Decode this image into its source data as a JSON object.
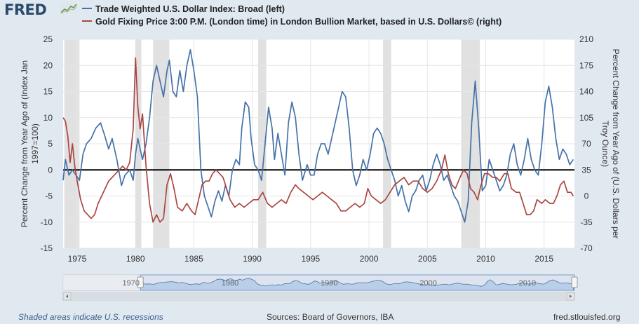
{
  "header": {
    "logo_text": "FRED",
    "logo_icon": "chart-line-icon",
    "legend": [
      {
        "label": "Trade Weighted U.S. Dollar Index: Broad (left)",
        "color": "#4572a7"
      },
      {
        "label": "Gold Fixing Price 3:00 P.M. (London time) in London Bullion Market, based in U.S. Dollars© (right)",
        "color": "#aa4643"
      }
    ]
  },
  "colors": {
    "plot_bg": "#ffffff",
    "page_bg": "#e1e9f0",
    "recession": "#e1e1e1",
    "zero_line": "#000000",
    "navigator_fill": "#c8dcf0",
    "navigator_line": "#4572a7"
  },
  "chart_data": {
    "type": "line",
    "x_range": [
      1973.8,
      2017.6
    ],
    "x_ticks": [
      1975,
      1980,
      1985,
      1990,
      1995,
      2000,
      2005,
      2010,
      2015
    ],
    "left_axis": {
      "label": "Percent Change from Year Ago of (Index Jan 1997=100)",
      "range": [
        -15,
        25
      ],
      "ticks": [
        -15,
        -10,
        -5,
        0,
        5,
        10,
        15,
        20,
        25
      ]
    },
    "right_axis": {
      "label": "Percent Change from Year Ago of (U.S. Dollars per Troy Ounce)",
      "range": [
        -70,
        210
      ],
      "ticks": [
        -70,
        -35,
        0,
        35,
        70,
        105,
        140,
        175,
        210
      ]
    },
    "recessions": [
      [
        1973.9,
        1975.2
      ],
      [
        1980.0,
        1980.5
      ],
      [
        1981.5,
        1982.9
      ],
      [
        1990.5,
        1991.2
      ],
      [
        2001.2,
        2001.9
      ],
      [
        2007.9,
        2009.5
      ]
    ],
    "series": [
      {
        "name": "Trade Weighted U.S. Dollar Index: Broad (left)",
        "axis": "left",
        "color": "#4572a7",
        "points": [
          [
            1973.8,
            -2
          ],
          [
            1974.0,
            2
          ],
          [
            1974.3,
            -1
          ],
          [
            1974.6,
            0
          ],
          [
            1974.9,
            -1
          ],
          [
            1975.2,
            -2
          ],
          [
            1975.5,
            3
          ],
          [
            1975.8,
            5
          ],
          [
            1976.2,
            6
          ],
          [
            1976.6,
            8
          ],
          [
            1977.0,
            9
          ],
          [
            1977.3,
            7
          ],
          [
            1977.7,
            4
          ],
          [
            1978.0,
            6
          ],
          [
            1978.4,
            2
          ],
          [
            1978.8,
            -3
          ],
          [
            1979.1,
            -1
          ],
          [
            1979.5,
            0
          ],
          [
            1979.8,
            -2
          ],
          [
            1980.0,
            3
          ],
          [
            1980.2,
            6
          ],
          [
            1980.4,
            4
          ],
          [
            1980.6,
            2
          ],
          [
            1980.9,
            5
          ],
          [
            1981.2,
            10
          ],
          [
            1981.5,
            17
          ],
          [
            1981.8,
            20
          ],
          [
            1982.1,
            17
          ],
          [
            1982.4,
            14
          ],
          [
            1982.7,
            19
          ],
          [
            1982.9,
            21
          ],
          [
            1983.2,
            15
          ],
          [
            1983.5,
            14
          ],
          [
            1983.8,
            19
          ],
          [
            1984.1,
            15
          ],
          [
            1984.4,
            20
          ],
          [
            1984.7,
            23
          ],
          [
            1985.0,
            19
          ],
          [
            1985.3,
            14
          ],
          [
            1985.6,
            0
          ],
          [
            1985.9,
            -5
          ],
          [
            1986.2,
            -7
          ],
          [
            1986.5,
            -9
          ],
          [
            1986.8,
            -6
          ],
          [
            1987.1,
            -4
          ],
          [
            1987.4,
            -6
          ],
          [
            1987.7,
            -3
          ],
          [
            1988.0,
            -5
          ],
          [
            1988.3,
            0
          ],
          [
            1988.6,
            2
          ],
          [
            1988.9,
            1
          ],
          [
            1989.1,
            8
          ],
          [
            1989.4,
            13
          ],
          [
            1989.7,
            12
          ],
          [
            1989.9,
            6
          ],
          [
            1990.2,
            1
          ],
          [
            1990.5,
            0
          ],
          [
            1990.8,
            -2
          ],
          [
            1991.1,
            5
          ],
          [
            1991.4,
            12
          ],
          [
            1991.7,
            8
          ],
          [
            1991.9,
            2
          ],
          [
            1992.2,
            7
          ],
          [
            1992.5,
            3
          ],
          [
            1992.8,
            -1
          ],
          [
            1993.1,
            9
          ],
          [
            1993.4,
            13
          ],
          [
            1993.7,
            10
          ],
          [
            1994.0,
            3
          ],
          [
            1994.3,
            -2
          ],
          [
            1994.7,
            1
          ],
          [
            1995.0,
            -1
          ],
          [
            1995.3,
            -1
          ],
          [
            1995.6,
            3
          ],
          [
            1995.9,
            5
          ],
          [
            1996.2,
            5
          ],
          [
            1996.5,
            3
          ],
          [
            1996.8,
            6
          ],
          [
            1997.1,
            9
          ],
          [
            1997.4,
            12
          ],
          [
            1997.7,
            15
          ],
          [
            1998.0,
            14
          ],
          [
            1998.3,
            8
          ],
          [
            1998.6,
            0
          ],
          [
            1998.9,
            -3
          ],
          [
            1999.2,
            -1
          ],
          [
            1999.5,
            2
          ],
          [
            1999.8,
            0
          ],
          [
            2000.1,
            3
          ],
          [
            2000.4,
            7
          ],
          [
            2000.7,
            8
          ],
          [
            2001.0,
            7
          ],
          [
            2001.3,
            5
          ],
          [
            2001.6,
            2
          ],
          [
            2001.9,
            0
          ],
          [
            2002.2,
            -2
          ],
          [
            2002.5,
            -5
          ],
          [
            2002.8,
            -3
          ],
          [
            2003.1,
            -6
          ],
          [
            2003.4,
            -8
          ],
          [
            2003.7,
            -5
          ],
          [
            2004.0,
            -4
          ],
          [
            2004.3,
            -2
          ],
          [
            2004.6,
            -1
          ],
          [
            2004.9,
            -4
          ],
          [
            2005.2,
            -2
          ],
          [
            2005.5,
            1
          ],
          [
            2005.8,
            3
          ],
          [
            2006.1,
            1
          ],
          [
            2006.4,
            -2
          ],
          [
            2006.7,
            -1
          ],
          [
            2007.0,
            -3
          ],
          [
            2007.3,
            -5
          ],
          [
            2007.6,
            -6
          ],
          [
            2007.9,
            -8
          ],
          [
            2008.2,
            -10
          ],
          [
            2008.5,
            -6
          ],
          [
            2008.8,
            9
          ],
          [
            2009.1,
            17
          ],
          [
            2009.4,
            8
          ],
          [
            2009.7,
            -4
          ],
          [
            2010.0,
            -3
          ],
          [
            2010.3,
            2
          ],
          [
            2010.6,
            0
          ],
          [
            2010.9,
            -2
          ],
          [
            2011.2,
            -4
          ],
          [
            2011.5,
            -3
          ],
          [
            2011.8,
            -1
          ],
          [
            2012.1,
            3
          ],
          [
            2012.4,
            5
          ],
          [
            2012.7,
            1
          ],
          [
            2013.0,
            -1
          ],
          [
            2013.3,
            2
          ],
          [
            2013.6,
            6
          ],
          [
            2013.9,
            2
          ],
          [
            2014.2,
            0
          ],
          [
            2014.5,
            -1
          ],
          [
            2014.8,
            5
          ],
          [
            2015.1,
            13
          ],
          [
            2015.4,
            16
          ],
          [
            2015.7,
            12
          ],
          [
            2016.0,
            6
          ],
          [
            2016.3,
            2
          ],
          [
            2016.6,
            4
          ],
          [
            2016.9,
            3
          ],
          [
            2017.2,
            1
          ],
          [
            2017.5,
            2
          ]
        ]
      },
      {
        "name": "Gold Fixing Price 3:00 P.M. (London time) in London Bullion Market, based in U.S. Dollars© (right)",
        "axis": "right",
        "color": "#aa4643",
        "points": [
          [
            1973.8,
            105
          ],
          [
            1974.0,
            100
          ],
          [
            1974.2,
            80
          ],
          [
            1974.4,
            45
          ],
          [
            1974.6,
            70
          ],
          [
            1974.8,
            40
          ],
          [
            1975.0,
            20
          ],
          [
            1975.3,
            -5
          ],
          [
            1975.6,
            -20
          ],
          [
            1975.9,
            -25
          ],
          [
            1976.2,
            -30
          ],
          [
            1976.5,
            -25
          ],
          [
            1976.8,
            -10
          ],
          [
            1977.1,
            0
          ],
          [
            1977.4,
            10
          ],
          [
            1977.7,
            20
          ],
          [
            1978.0,
            25
          ],
          [
            1978.3,
            30
          ],
          [
            1978.6,
            35
          ],
          [
            1978.9,
            40
          ],
          [
            1979.2,
            35
          ],
          [
            1979.5,
            45
          ],
          [
            1979.8,
            90
          ],
          [
            1980.0,
            185
          ],
          [
            1980.2,
            120
          ],
          [
            1980.4,
            90
          ],
          [
            1980.6,
            110
          ],
          [
            1980.9,
            40
          ],
          [
            1981.2,
            -10
          ],
          [
            1981.5,
            -35
          ],
          [
            1981.8,
            -25
          ],
          [
            1982.1,
            -35
          ],
          [
            1982.4,
            -30
          ],
          [
            1982.7,
            15
          ],
          [
            1983.0,
            30
          ],
          [
            1983.3,
            10
          ],
          [
            1983.6,
            -15
          ],
          [
            1984.0,
            -20
          ],
          [
            1984.4,
            -10
          ],
          [
            1984.8,
            -20
          ],
          [
            1985.1,
            -25
          ],
          [
            1985.4,
            -5
          ],
          [
            1985.7,
            15
          ],
          [
            1986.0,
            20
          ],
          [
            1986.3,
            20
          ],
          [
            1986.6,
            30
          ],
          [
            1986.9,
            35
          ],
          [
            1987.2,
            30
          ],
          [
            1987.5,
            25
          ],
          [
            1987.8,
            10
          ],
          [
            1988.1,
            -5
          ],
          [
            1988.5,
            -15
          ],
          [
            1988.9,
            -10
          ],
          [
            1989.3,
            -15
          ],
          [
            1989.7,
            -10
          ],
          [
            1990.1,
            -5
          ],
          [
            1990.5,
            -5
          ],
          [
            1990.9,
            5
          ],
          [
            1991.3,
            -10
          ],
          [
            1991.7,
            -15
          ],
          [
            1992.1,
            -10
          ],
          [
            1992.5,
            -5
          ],
          [
            1992.9,
            -10
          ],
          [
            1993.3,
            5
          ],
          [
            1993.7,
            15
          ],
          [
            1994.0,
            10
          ],
          [
            1994.4,
            5
          ],
          [
            1994.8,
            0
          ],
          [
            1995.2,
            -5
          ],
          [
            1995.6,
            0
          ],
          [
            1996.0,
            5
          ],
          [
            1996.4,
            0
          ],
          [
            1996.8,
            -5
          ],
          [
            1997.2,
            -10
          ],
          [
            1997.6,
            -20
          ],
          [
            1998.0,
            -20
          ],
          [
            1998.4,
            -15
          ],
          [
            1998.8,
            -10
          ],
          [
            1999.2,
            -15
          ],
          [
            1999.6,
            -10
          ],
          [
            1999.9,
            10
          ],
          [
            2000.2,
            0
          ],
          [
            2000.6,
            -5
          ],
          [
            2001.0,
            -10
          ],
          [
            2001.4,
            -5
          ],
          [
            2001.8,
            5
          ],
          [
            2002.2,
            15
          ],
          [
            2002.6,
            20
          ],
          [
            2003.0,
            25
          ],
          [
            2003.4,
            15
          ],
          [
            2003.8,
            20
          ],
          [
            2004.2,
            20
          ],
          [
            2004.6,
            10
          ],
          [
            2005.0,
            5
          ],
          [
            2005.4,
            10
          ],
          [
            2005.8,
            20
          ],
          [
            2006.2,
            35
          ],
          [
            2006.5,
            55
          ],
          [
            2006.8,
            30
          ],
          [
            2007.1,
            15
          ],
          [
            2007.4,
            10
          ],
          [
            2007.8,
            25
          ],
          [
            2008.1,
            35
          ],
          [
            2008.4,
            30
          ],
          [
            2008.7,
            10
          ],
          [
            2009.0,
            5
          ],
          [
            2009.3,
            -5
          ],
          [
            2009.6,
            15
          ],
          [
            2009.9,
            30
          ],
          [
            2010.2,
            30
          ],
          [
            2010.6,
            25
          ],
          [
            2010.9,
            25
          ],
          [
            2011.2,
            20
          ],
          [
            2011.6,
            30
          ],
          [
            2011.9,
            30
          ],
          [
            2012.2,
            10
          ],
          [
            2012.6,
            5
          ],
          [
            2012.9,
            5
          ],
          [
            2013.2,
            -10
          ],
          [
            2013.5,
            -25
          ],
          [
            2013.8,
            -25
          ],
          [
            2014.1,
            -20
          ],
          [
            2014.4,
            -5
          ],
          [
            2014.8,
            -10
          ],
          [
            2015.1,
            -5
          ],
          [
            2015.5,
            -10
          ],
          [
            2015.8,
            -10
          ],
          [
            2016.1,
            0
          ],
          [
            2016.4,
            15
          ],
          [
            2016.7,
            20
          ],
          [
            2017.0,
            5
          ],
          [
            2017.3,
            5
          ],
          [
            2017.5,
            0
          ]
        ]
      }
    ],
    "navigator": {
      "tick_labels": [
        "1970",
        "1980",
        "1990",
        "2000",
        "2010"
      ],
      "tick_years": [
        1970,
        1980,
        1990,
        2000,
        2010
      ],
      "range": [
        1966,
        2017.6
      ],
      "selected": [
        1973.8,
        2017.6
      ]
    }
  },
  "footer": {
    "left": "Shaded areas indicate U.S. recessions",
    "mid": "Sources: Board of Governors, IBA",
    "right": "fred.stlouisfed.org"
  }
}
